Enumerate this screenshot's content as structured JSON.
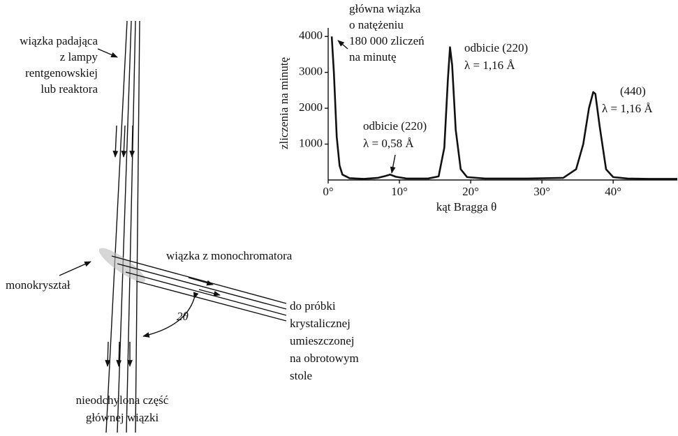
{
  "chart_data": {
    "type": "line",
    "x_label": "kąt Bragga θ",
    "y_label": "zliczenia na minutę",
    "x": [
      0.5,
      0.8,
      1.2,
      1.6,
      2,
      3,
      5,
      7,
      8,
      8.7,
      9.5,
      11,
      14,
      15.5,
      16.3,
      16.8,
      17.1,
      17.4,
      17.9,
      18.6,
      19.5,
      22,
      28,
      33,
      34.8,
      35.8,
      36.6,
      37.2,
      37.5,
      38.1,
      39,
      40,
      42,
      45,
      49
    ],
    "values": [
      4000,
      3000,
      1200,
      400,
      150,
      50,
      30,
      60,
      110,
      150,
      90,
      40,
      40,
      100,
      900,
      2800,
      3700,
      3200,
      1400,
      300,
      80,
      40,
      40,
      60,
      300,
      1000,
      2000,
      2450,
      2400,
      1500,
      300,
      80,
      40,
      30,
      30
    ],
    "color": "#111",
    "xlim": [
      0,
      49
    ],
    "ylim": [
      0,
      4200
    ],
    "xticks": [
      {
        "value": 0,
        "label": "0°"
      },
      {
        "value": 10,
        "label": "10°"
      },
      {
        "value": 20,
        "label": "20°"
      },
      {
        "value": 30,
        "label": "30°"
      },
      {
        "value": 40,
        "label": "40°"
      }
    ],
    "yticks": [
      1000,
      2000,
      3000,
      4000
    ],
    "annotations": {
      "main_beam": [
        "główna wiązka",
        "o natężeniu",
        "180 000 zliczeń",
        "na minutę"
      ],
      "peak_220_116": [
        "odbicie (220)",
        "λ = 1,16 Å"
      ],
      "peak_220_058": [
        "odbicie (220)",
        "λ = 0,58 Å"
      ],
      "peak_440": [
        "(440)",
        "λ = 1,16 Å"
      ]
    }
  },
  "diagram": {
    "incident_beam": [
      "wiązka padająca",
      "z lampy",
      "rentgenowskiej",
      "lub reaktora"
    ],
    "crystal": "monokryształ",
    "mono_beam": "wiązka z monochromatora",
    "angle": "2θ",
    "to_sample": [
      "do próbki",
      "krystalicznej",
      "umieszczonej",
      "na obrotowym",
      "stole"
    ],
    "undeflected": [
      "nieodchylona część",
      "głównej wiązki"
    ]
  }
}
